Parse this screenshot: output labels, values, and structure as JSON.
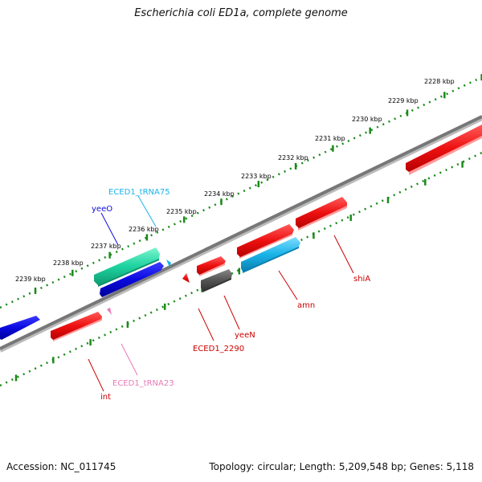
{
  "title": "Escherichia coli ED1a, complete genome",
  "footer": {
    "accession": "Accession: NC_011745",
    "summary": "Topology: circular; Length: 5,209,548 bp; Genes: 5,118"
  },
  "colors": {
    "forward_cds": "#ee1111",
    "reverse_cds": "#0a0ae0",
    "trna_top": "#1ed2a0",
    "cyan_gene": "#1ab4e8",
    "gray_gene": "#555555",
    "backbone": "#777777",
    "tick": "#1a8a1a",
    "trna_small": "#e87ab8"
  },
  "scale": {
    "unit": "kbp",
    "tick_labels": [
      "2228 kbp",
      "2229 kbp",
      "2230 kbp",
      "2231 kbp",
      "2232 kbp",
      "2233 kbp",
      "2234 kbp",
      "2235 kbp",
      "2236 kbp",
      "2237 kbp",
      "2238 kbp",
      "2239 kbp"
    ]
  },
  "gene_labels": [
    {
      "id": "ECED1_tRNA75",
      "text": "ECED1_tRNA75",
      "color": "#1ab4e8"
    },
    {
      "id": "yeeO",
      "text": "yeeO",
      "color": "#0a0ae0"
    },
    {
      "id": "shiA",
      "text": "shiA",
      "color": "#cc0000"
    },
    {
      "id": "amn",
      "text": "amn",
      "color": "#cc0000"
    },
    {
      "id": "yeeN",
      "text": "yeeN",
      "color": "#cc0000"
    },
    {
      "id": "ECED1_2290",
      "text": "ECED1_2290",
      "color": "#cc0000"
    },
    {
      "id": "ECED1_tRNA23",
      "text": "ECED1_tRNA23",
      "color": "#e87ab8"
    },
    {
      "id": "int",
      "text": "int",
      "color": "#cc0000"
    }
  ]
}
